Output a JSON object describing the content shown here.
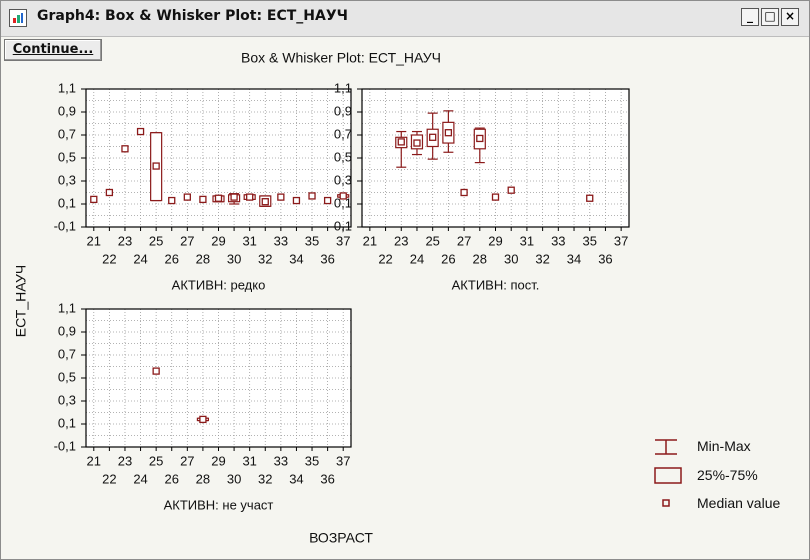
{
  "window": {
    "title": "Graph4: Box & Whisker Plot: ЕСТ_НАУЧ",
    "continue_label": "Continue...",
    "buttons": {
      "minimize": "_",
      "maximize": "□",
      "close": "×"
    }
  },
  "chart_data": {
    "type": "box",
    "title": "Box & Whisker Plot: ЕСТ_НАУЧ",
    "ylabel": "ЕСТ_НАУЧ",
    "xlabel": "ВОЗРАСТ",
    "ylim": [
      -0.1,
      1.1
    ],
    "yticks": [
      "-0,1",
      "0,1",
      "0,3",
      "0,5",
      "0,7",
      "0,9",
      "1,1"
    ],
    "yticks_minor": [
      "0,0",
      "0,2",
      "0,4",
      "0,6",
      "0,8",
      "1,0"
    ],
    "xlim": [
      20.5,
      37.5
    ],
    "xticks_top": [
      "21",
      "23",
      "25",
      "27",
      "29",
      "31",
      "33",
      "35",
      "37"
    ],
    "xticks_bottom": [
      "22",
      "24",
      "26",
      "28",
      "30",
      "32",
      "34",
      "36"
    ],
    "grid": true,
    "legend_position": "bottom-right",
    "legend": [
      "Min-Max",
      "25%-75%",
      "Median value"
    ],
    "color": "#8b1a1a",
    "panels": [
      {
        "label": "АКТИВН: редко",
        "boxes": [
          {
            "x": 21,
            "median": 0.14
          },
          {
            "x": 22,
            "median": 0.2
          },
          {
            "x": 23,
            "median": 0.58
          },
          {
            "x": 24,
            "median": 0.73
          },
          {
            "x": 25,
            "median": 0.43,
            "q1": 0.13,
            "q3": 0.72,
            "min": 0.13,
            "max": 0.72
          },
          {
            "x": 26,
            "median": 0.13
          },
          {
            "x": 27,
            "median": 0.16
          },
          {
            "x": 28,
            "median": 0.14
          },
          {
            "x": 29,
            "median": 0.15,
            "q1": 0.12,
            "q3": 0.17,
            "min": 0.12,
            "max": 0.17
          },
          {
            "x": 30,
            "median": 0.16,
            "q1": 0.12,
            "q3": 0.18,
            "min": 0.1,
            "max": 0.19
          },
          {
            "x": 31,
            "median": 0.16,
            "q1": 0.14,
            "q3": 0.18,
            "min": 0.14,
            "max": 0.18
          },
          {
            "x": 32,
            "median": 0.12,
            "q1": 0.08,
            "q3": 0.17,
            "min": 0.08,
            "max": 0.17
          },
          {
            "x": 33,
            "median": 0.16
          },
          {
            "x": 34,
            "median": 0.13
          },
          {
            "x": 35,
            "median": 0.17
          },
          {
            "x": 36,
            "median": 0.13
          },
          {
            "x": 37,
            "median": 0.17,
            "q1": 0.16,
            "q3": 0.18,
            "min": 0.16,
            "max": 0.18
          }
        ]
      },
      {
        "label": "АКТИВН: пост.",
        "boxes": [
          {
            "x": 23,
            "median": 0.64,
            "q1": 0.59,
            "q3": 0.68,
            "min": 0.42,
            "max": 0.73
          },
          {
            "x": 24,
            "median": 0.63,
            "q1": 0.58,
            "q3": 0.7,
            "min": 0.53,
            "max": 0.73
          },
          {
            "x": 25,
            "median": 0.68,
            "q1": 0.6,
            "q3": 0.75,
            "min": 0.49,
            "max": 0.89
          },
          {
            "x": 26,
            "median": 0.72,
            "q1": 0.63,
            "q3": 0.81,
            "min": 0.55,
            "max": 0.91
          },
          {
            "x": 27,
            "median": 0.2
          },
          {
            "x": 28,
            "median": 0.67,
            "q1": 0.58,
            "q3": 0.75,
            "min": 0.46,
            "max": 0.76
          },
          {
            "x": 29,
            "median": 0.16
          },
          {
            "x": 30,
            "median": 0.22
          },
          {
            "x": 35,
            "median": 0.15
          }
        ]
      },
      {
        "label": "АКТИВН: не участ",
        "boxes": [
          {
            "x": 25,
            "median": 0.56
          },
          {
            "x": 28,
            "median": 0.14,
            "q1": 0.13,
            "q3": 0.15,
            "min": 0.13,
            "max": 0.15
          }
        ]
      }
    ]
  }
}
